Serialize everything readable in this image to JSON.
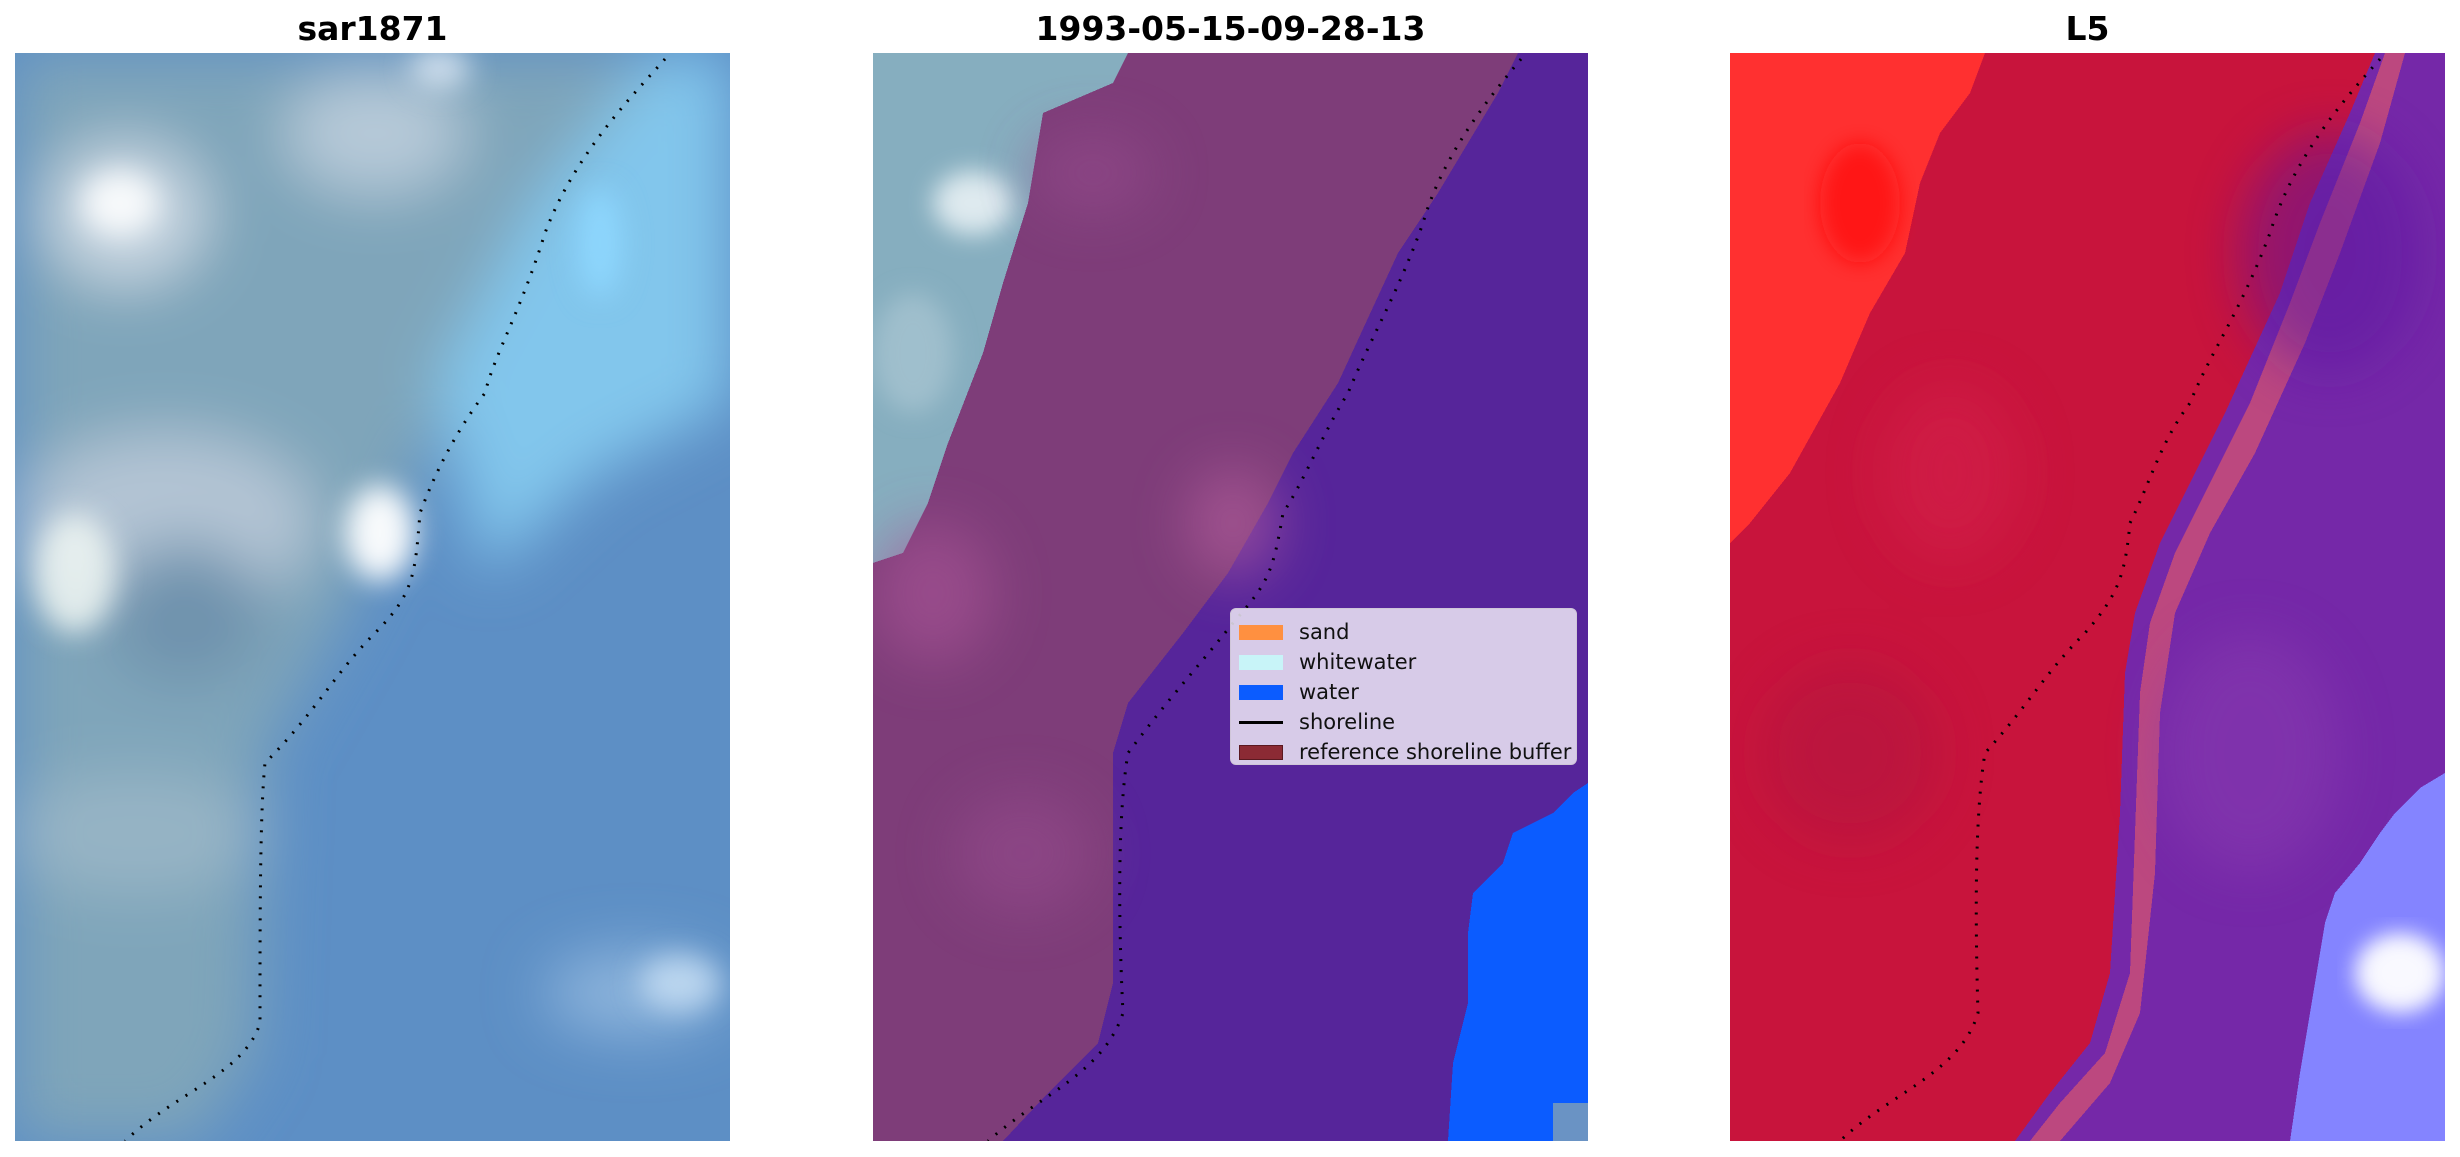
{
  "panels": [
    {
      "title": "sar1871"
    },
    {
      "title": "1993-05-15-09-28-13"
    },
    {
      "title": "L5"
    }
  ],
  "legend": {
    "items": [
      {
        "label": "sand",
        "color": "#ff9040",
        "kind": "patch"
      },
      {
        "label": "whitewater",
        "color": "#c8f4f8",
        "kind": "patch"
      },
      {
        "label": "water",
        "color": "#0b5cff",
        "kind": "patch"
      },
      {
        "label": "shoreline",
        "color": "#000000",
        "kind": "line"
      },
      {
        "label": "reference shoreline buffer",
        "color": "#8b2a34",
        "kind": "patch"
      }
    ]
  },
  "colors": {
    "sea_blue": "#5b8ec6",
    "light_sea": "#86cff0",
    "land_teal": "#7fa6bc",
    "land_purple": "#7d3c78",
    "water_class_purple": "#56259a",
    "water_class_blue": "#0b5cff",
    "index_red": "#c8143c",
    "index_bright_red": "#ff2222",
    "index_purple": "#7528a8",
    "index_lilac": "#8080ff"
  }
}
